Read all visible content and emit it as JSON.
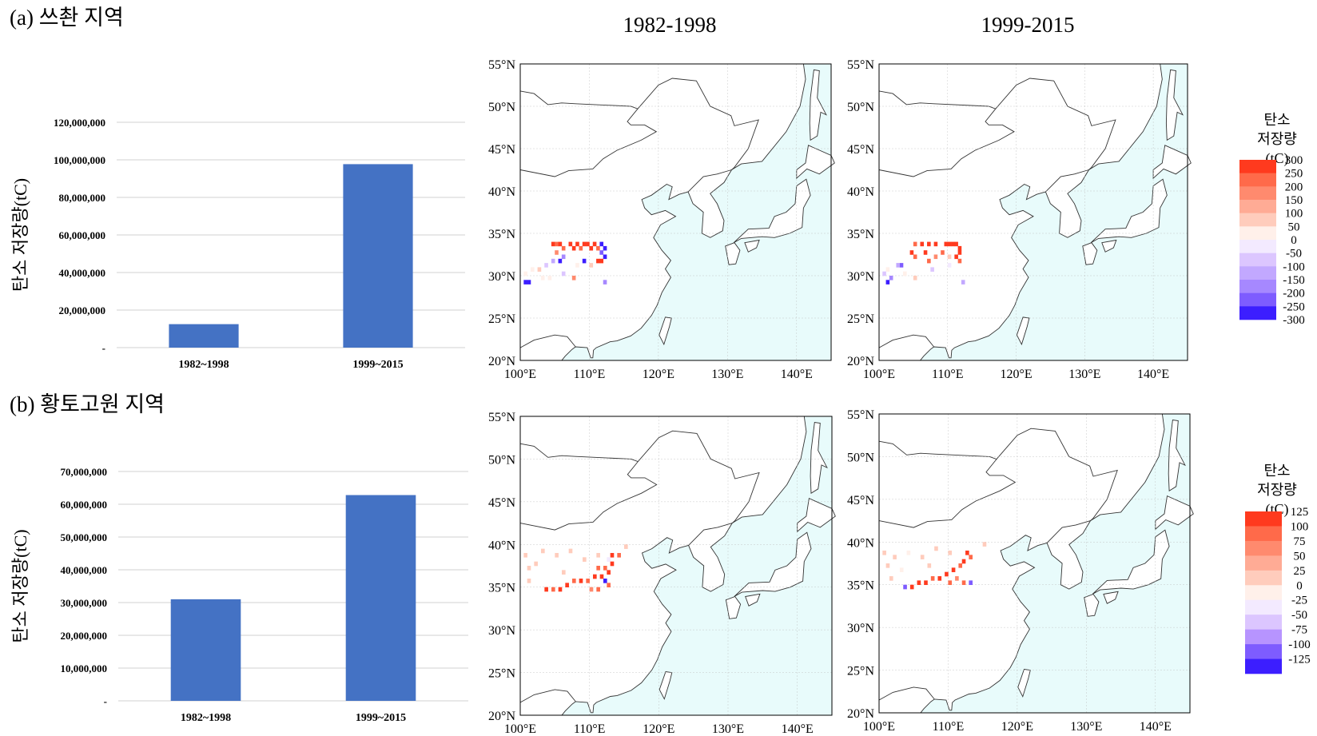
{
  "panels": {
    "a": {
      "title": "(a) 쓰촨 지역"
    },
    "b": {
      "title": "(b) 황토고원 지역"
    }
  },
  "columns": [
    "1982-1998",
    "1999-2015"
  ],
  "colors": {
    "bar": "#4472c4",
    "sea": "#e8fbfb",
    "land": "#ffffff",
    "grid": "#d0d0d0"
  },
  "chart_data": [
    {
      "id": "a-bar",
      "type": "bar",
      "categories": [
        "1982~1998",
        "1999~2015"
      ],
      "values": [
        12500000,
        97700000
      ],
      "ylabel": "탄소 저장량(tC)",
      "ylim": [
        0,
        120000000
      ],
      "yticks": [
        "-",
        "20,000,000",
        "40,000,000",
        "60,000,000",
        "80,000,000",
        "100,000,000",
        "120,000,000"
      ],
      "grid": true
    },
    {
      "id": "b-bar",
      "type": "bar",
      "categories": [
        "1982~1998",
        "1999~2015"
      ],
      "values": [
        31000000,
        62800000
      ],
      "ylabel": "탄소 저장량(tC)",
      "ylim": [
        0,
        70000000
      ],
      "yticks": [
        "-",
        "10,000,000",
        "20,000,000",
        "30,000,000",
        "40,000,000",
        "50,000,000",
        "60,000,000",
        "70,000,000"
      ],
      "grid": true
    },
    {
      "id": "maps",
      "type": "heatmap",
      "lon_range": [
        100,
        145
      ],
      "lat_range": [
        20,
        55
      ],
      "xticks": [
        "100°E",
        "110°E",
        "120°E",
        "130°E",
        "140°E"
      ],
      "yticks": [
        "20°N",
        "25°N",
        "30°N",
        "35°N",
        "40°N",
        "45°N",
        "50°N",
        "55°N"
      ],
      "legends": {
        "a": {
          "title": "탄소 저장량",
          "unit": "(tC)",
          "labels": [
            "300",
            "250",
            "200",
            "150",
            "100",
            "50",
            "0",
            "-50",
            "-100",
            "-150",
            "-200",
            "-250",
            "-300"
          ],
          "colors": [
            "#ff3a1e",
            "#ff6a4a",
            "#ff8a6e",
            "#ffab95",
            "#ffccbc",
            "#fff0ea",
            "#f3eaff",
            "#dcc6ff",
            "#c2a8ff",
            "#a688ff",
            "#7e5cff",
            "#3c1eff"
          ]
        },
        "b": {
          "title": "탄소 저장량",
          "unit": "(tC)",
          "labels": [
            "125",
            "100",
            "75",
            "50",
            "25",
            "0",
            "-25",
            "-50",
            "-75",
            "-100",
            "-125"
          ],
          "colors": [
            "#ff3a1e",
            "#ff6a4a",
            "#ff8a6e",
            "#ffab95",
            "#ffccbc",
            "#fff0ea",
            "#f3eaff",
            "#dcc6ff",
            "#b794ff",
            "#7e5cff",
            "#3c1eff"
          ]
        }
      },
      "cells": {
        "a-1982-1998": [
          [
            104.5,
            33.5,
            280
          ],
          [
            105,
            33.5,
            250
          ],
          [
            105.5,
            33.5,
            300
          ],
          [
            106,
            33,
            220
          ],
          [
            107,
            33.5,
            290
          ],
          [
            107.5,
            33,
            260
          ],
          [
            108,
            33.5,
            300
          ],
          [
            108.5,
            33,
            240
          ],
          [
            109,
            33.5,
            280
          ],
          [
            109.5,
            33.5,
            300
          ],
          [
            110,
            33,
            270
          ],
          [
            110.5,
            33.5,
            300
          ],
          [
            111,
            33,
            220
          ],
          [
            111.5,
            33.5,
            -250
          ],
          [
            112,
            33,
            -280
          ],
          [
            111.5,
            32.5,
            -200
          ],
          [
            112,
            32,
            -300
          ],
          [
            111,
            31.5,
            300
          ],
          [
            111.5,
            31.5,
            260
          ],
          [
            105,
            32.5,
            180
          ],
          [
            106,
            32,
            -150
          ],
          [
            105.5,
            31.5,
            -250
          ],
          [
            104.5,
            31.5,
            -100
          ],
          [
            103.5,
            31,
            -60
          ],
          [
            102.5,
            30.5,
            60
          ],
          [
            101.5,
            30.5,
            40
          ],
          [
            100.5,
            30,
            50
          ],
          [
            101,
            29,
            -300
          ],
          [
            100.5,
            29,
            -250
          ],
          [
            103,
            29.5,
            30
          ],
          [
            104,
            29.5,
            40
          ],
          [
            106,
            30,
            -50
          ],
          [
            107.5,
            29.5,
            200
          ],
          [
            109,
            31.5,
            -300
          ],
          [
            110,
            31,
            60
          ],
          [
            112,
            29,
            -150
          ],
          [
            108,
            31,
            40
          ]
        ],
        "a-1999-2015": [
          [
            105,
            33.5,
            250
          ],
          [
            106,
            33.5,
            300
          ],
          [
            107,
            33.5,
            280
          ],
          [
            108,
            33.5,
            290
          ],
          [
            109.5,
            33.5,
            300
          ],
          [
            110,
            33.5,
            300
          ],
          [
            110.5,
            33.5,
            270
          ],
          [
            111,
            33.5,
            300
          ],
          [
            111.5,
            33,
            280
          ],
          [
            111.5,
            32.5,
            300
          ],
          [
            111,
            32,
            260
          ],
          [
            111.5,
            31.5,
            250
          ],
          [
            104.5,
            32.5,
            280
          ],
          [
            105,
            32,
            220
          ],
          [
            106.5,
            32.5,
            300
          ],
          [
            107,
            31.5,
            240
          ],
          [
            108,
            32,
            200
          ],
          [
            109,
            32.5,
            250
          ],
          [
            110,
            32,
            60
          ],
          [
            103,
            31,
            -200
          ],
          [
            102.5,
            31,
            -120
          ],
          [
            101,
            30.5,
            40
          ],
          [
            100.5,
            30,
            -60
          ],
          [
            101,
            29,
            -300
          ],
          [
            101.5,
            29.5,
            -150
          ],
          [
            103.5,
            30,
            40
          ],
          [
            105,
            29.5,
            60
          ],
          [
            107.5,
            30.5,
            -50
          ],
          [
            110,
            31,
            -40
          ],
          [
            112,
            29,
            -120
          ]
        ],
        "b-1982-1998": [
          [
            113,
            38.5,
            110
          ],
          [
            114,
            38.5,
            90
          ],
          [
            112.5,
            38,
            -30
          ],
          [
            113,
            37.5,
            120
          ],
          [
            112,
            37,
            100
          ],
          [
            111,
            37,
            80
          ],
          [
            112.5,
            36.5,
            125
          ],
          [
            111.5,
            36,
            110
          ],
          [
            110.5,
            36,
            120
          ],
          [
            109.5,
            35.5,
            100
          ],
          [
            108.5,
            35.5,
            110
          ],
          [
            107.5,
            35.5,
            90
          ],
          [
            106.5,
            35,
            110
          ],
          [
            105.5,
            34.5,
            125
          ],
          [
            104.5,
            34.5,
            100
          ],
          [
            103.5,
            34.5,
            110
          ],
          [
            112,
            35.5,
            -125
          ],
          [
            112.5,
            35,
            100
          ],
          [
            111,
            34.5,
            80
          ],
          [
            110,
            34.5,
            60
          ],
          [
            102,
            37.5,
            20
          ],
          [
            101,
            37,
            15
          ],
          [
            100.5,
            38.5,
            10
          ],
          [
            103,
            39,
            15
          ],
          [
            105,
            38.5,
            10
          ],
          [
            107,
            39,
            15
          ],
          [
            109,
            38,
            20
          ],
          [
            111,
            38.5,
            10
          ],
          [
            101,
            35.5,
            20
          ],
          [
            106,
            36.5,
            15
          ],
          [
            115,
            39.5,
            10
          ]
        ],
        "b-1999-2015": [
          [
            112.5,
            38.5,
            110
          ],
          [
            113,
            38,
            90
          ],
          [
            112,
            37.5,
            125
          ],
          [
            111.5,
            37,
            100
          ],
          [
            110.5,
            36.5,
            120
          ],
          [
            109.5,
            36,
            110
          ],
          [
            108.5,
            35.5,
            125
          ],
          [
            107.5,
            35.5,
            100
          ],
          [
            106.5,
            35,
            120
          ],
          [
            105.5,
            35,
            110
          ],
          [
            104.5,
            34.5,
            125
          ],
          [
            103.5,
            34.5,
            -100
          ],
          [
            113,
            35,
            -110
          ],
          [
            112,
            35,
            90
          ],
          [
            111,
            35.5,
            60
          ],
          [
            110,
            35,
            80
          ],
          [
            101,
            37,
            20
          ],
          [
            100.5,
            38.5,
            10
          ],
          [
            102,
            38,
            15
          ],
          [
            104,
            38.5,
            -20
          ],
          [
            106,
            38,
            10
          ],
          [
            108,
            39,
            15
          ],
          [
            110,
            38.5,
            10
          ],
          [
            101.5,
            35.5,
            20
          ],
          [
            107,
            37,
            15
          ],
          [
            115,
            39.5,
            10
          ],
          [
            103,
            36.5,
            -15
          ]
        ]
      }
    }
  ]
}
